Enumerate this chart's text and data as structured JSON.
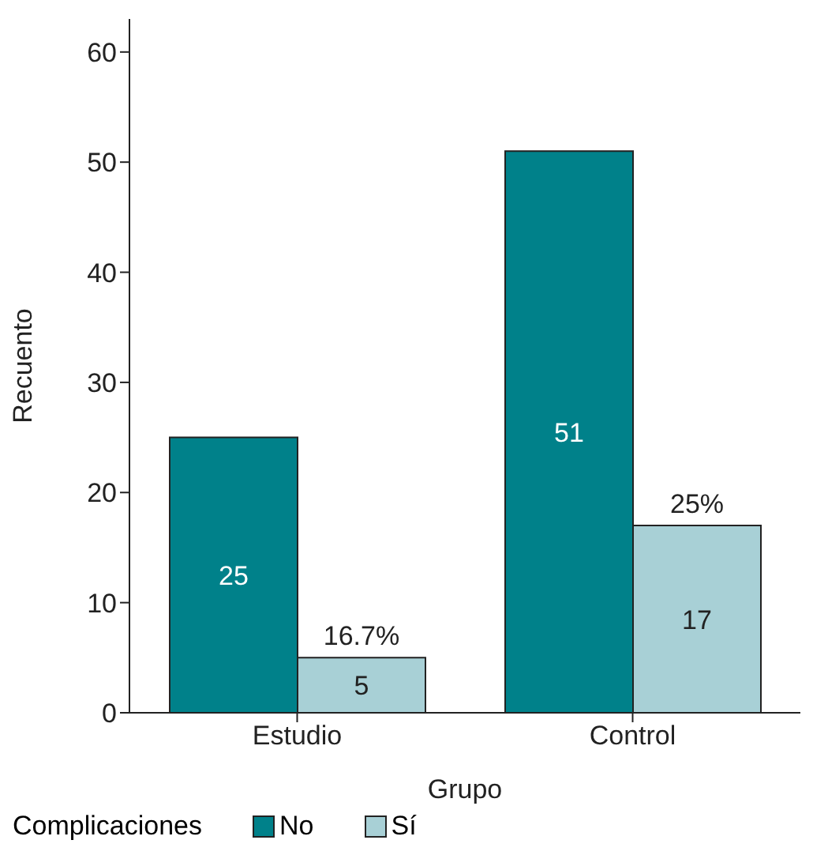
{
  "chart_data": {
    "type": "bar",
    "xlabel": "Grupo",
    "ylabel": "Recuento",
    "legend_title": "Complicaciones",
    "categories": [
      "Estudio",
      "Control"
    ],
    "series": [
      {
        "name": "No",
        "color": "#00818a",
        "values": [
          25,
          51
        ]
      },
      {
        "name": "Sí",
        "color": "#a8d0d6",
        "values": [
          5,
          17
        ]
      }
    ],
    "ylim": [
      0,
      63
    ],
    "yticks": [
      0,
      10,
      20,
      30,
      40,
      50,
      60
    ],
    "grid": false,
    "legend": "bottom left",
    "data_labels": true,
    "annotations": [
      {
        "text": "16.7%",
        "x": "Estudio",
        "y": 5
      },
      {
        "text": "25%",
        "x": "Control",
        "y": 17
      }
    ]
  }
}
